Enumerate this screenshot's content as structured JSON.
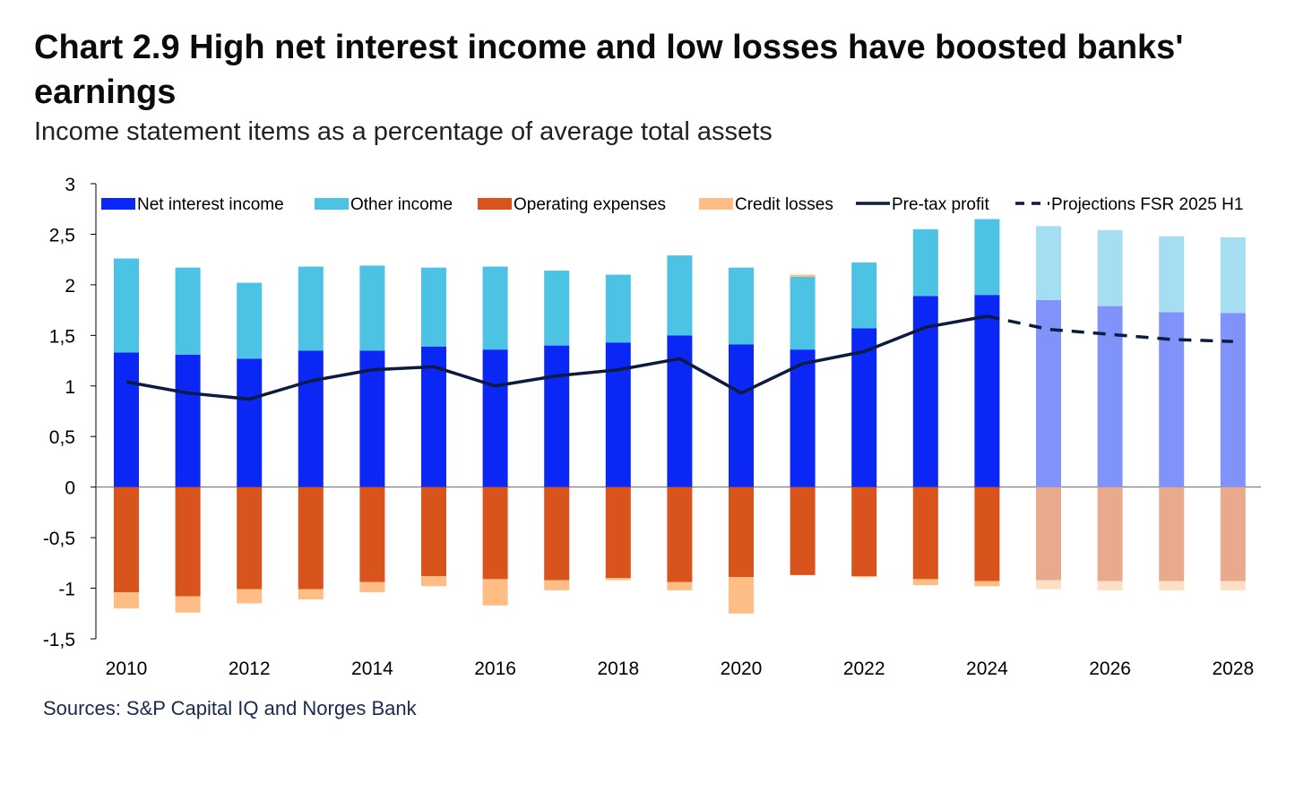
{
  "title": "Chart 2.9 High net interest income and low losses have boosted banks' earnings",
  "subtitle": "Income statement items as a percentage of average total assets",
  "source": "Sources: S&P Capital IQ and Norges Bank",
  "chart_data": {
    "type": "bar",
    "stacked": true,
    "ylim": [
      -1.5,
      3
    ],
    "yticks": [
      "3",
      "2,5",
      "2",
      "1,5",
      "1",
      "0,5",
      "0",
      "-0,5",
      "-1",
      "-1,5"
    ],
    "ytick_values": [
      3,
      2.5,
      2,
      1.5,
      1,
      0.5,
      0,
      -0.5,
      -1,
      -1.5
    ],
    "categories": [
      "2010",
      "2011",
      "2012",
      "2013",
      "2014",
      "2015",
      "2016",
      "2017",
      "2018",
      "2019",
      "2020",
      "2021",
      "2022",
      "2023",
      "2024",
      "2025",
      "2026",
      "2027",
      "2028"
    ],
    "xtick_labels": [
      "2010",
      "2012",
      "2014",
      "2016",
      "2018",
      "2020",
      "2022",
      "2024",
      "2026",
      "2028"
    ],
    "projection_start_index": 15,
    "legend_position": "top",
    "series": [
      {
        "name": "Net interest income",
        "type": "bar",
        "color": "#0a27f5",
        "projection_color": "#8093fb",
        "values": [
          1.33,
          1.31,
          1.27,
          1.35,
          1.35,
          1.39,
          1.36,
          1.4,
          1.43,
          1.5,
          1.41,
          1.36,
          1.57,
          1.89,
          1.9,
          1.85,
          1.79,
          1.73,
          1.72
        ]
      },
      {
        "name": "Other income",
        "type": "bar",
        "color": "#4cc2e4",
        "projection_color": "#a6def1",
        "values": [
          0.93,
          0.86,
          0.75,
          0.83,
          0.84,
          0.78,
          0.82,
          0.74,
          0.67,
          0.79,
          0.76,
          0.72,
          0.65,
          0.66,
          0.75,
          0.73,
          0.75,
          0.75,
          0.75
        ]
      },
      {
        "name": "Operating expenses",
        "type": "bar",
        "color": "#d9541c",
        "projection_color": "#e8a98d",
        "values": [
          -1.04,
          -1.08,
          -1.01,
          -1.01,
          -0.94,
          -0.88,
          -0.91,
          -0.92,
          -0.9,
          -0.94,
          -0.89,
          -0.87,
          -0.88,
          -0.91,
          -0.93,
          -0.92,
          -0.93,
          -0.93,
          -0.93
        ]
      },
      {
        "name": "Credit losses",
        "type": "bar",
        "color": "#fdbd84",
        "projection_color": "#fddfc4",
        "values": [
          -0.16,
          -0.16,
          -0.14,
          -0.1,
          -0.1,
          -0.1,
          -0.26,
          -0.1,
          -0.02,
          -0.08,
          -0.36,
          0.02,
          -0.01,
          -0.06,
          -0.05,
          -0.09,
          -0.09,
          -0.09,
          -0.09
        ]
      },
      {
        "name": "Pre-tax profit",
        "type": "line",
        "color": "#0d1b3e",
        "values": [
          1.04,
          0.93,
          0.87,
          1.05,
          1.16,
          1.19,
          1.0,
          1.1,
          1.16,
          1.27,
          0.93,
          1.22,
          1.34,
          1.58,
          1.69,
          null,
          null,
          null,
          null
        ]
      },
      {
        "name": "Projections FSR 2025 H1",
        "type": "line",
        "dashed": true,
        "color": "#0d1b3e",
        "values": [
          null,
          null,
          null,
          null,
          null,
          null,
          null,
          null,
          null,
          null,
          null,
          null,
          null,
          null,
          1.69,
          1.56,
          1.51,
          1.46,
          1.44
        ]
      }
    ]
  }
}
